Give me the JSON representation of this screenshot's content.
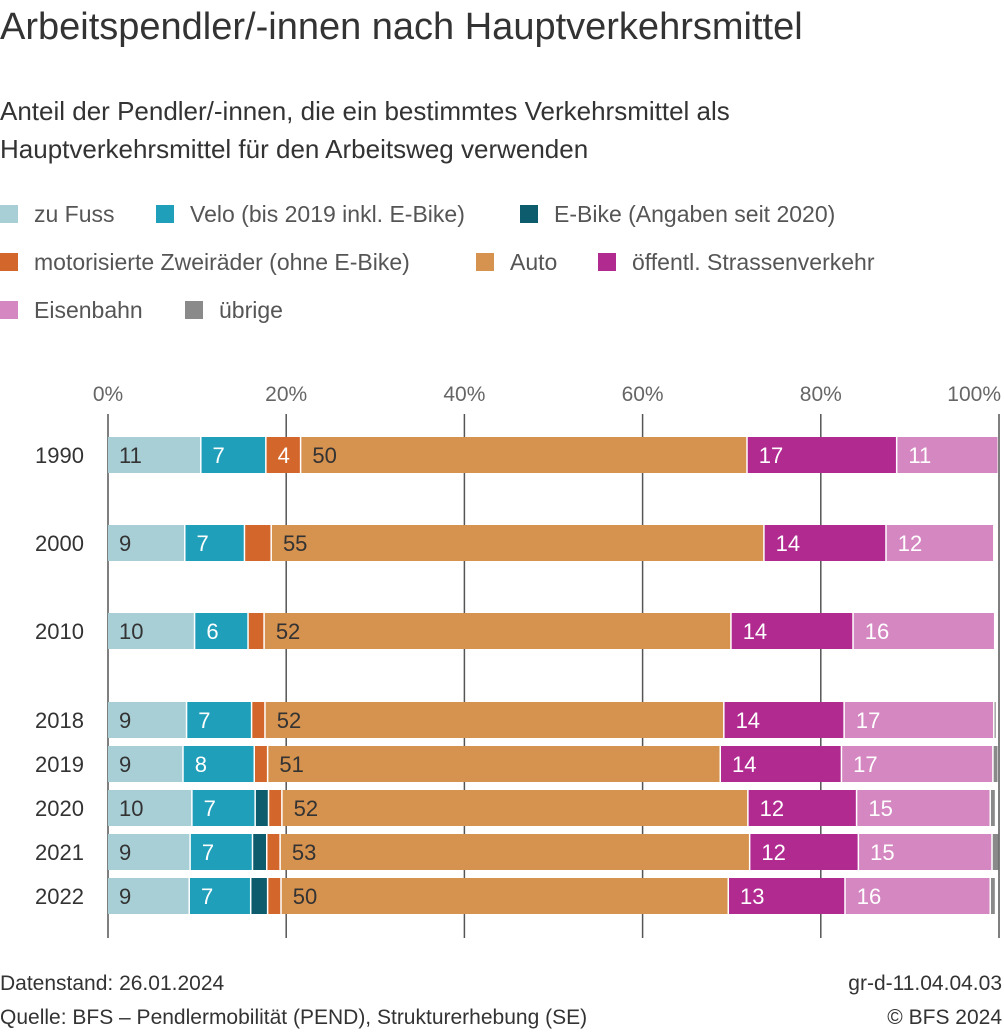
{
  "chart_data": {
    "type": "bar",
    "orientation": "horizontal",
    "stacked": true,
    "title": "Arbeitspendler/-innen nach Hauptverkehrsmittel",
    "subtitle": "Anteil der Pendler/-innen, die ein bestimmtes Verkehrsmittel als Hauptverkehrsmittel für den Arbeitsweg verwenden",
    "categories": [
      "1990",
      "2000",
      "2010",
      "2018",
      "2019",
      "2020",
      "2021",
      "2022"
    ],
    "x_ticks": [
      "0%",
      "20%",
      "40%",
      "60%",
      "80%",
      "100%"
    ],
    "xlim": [
      0,
      100
    ],
    "series": [
      {
        "name": "zu Fuss",
        "color": "#a8cfd6",
        "values": [
          10.5,
          8.7,
          9.8,
          8.9,
          8.5,
          9.5,
          9.3,
          9.2
        ],
        "labels": [
          "11",
          "9",
          "10",
          "9",
          "9",
          "10",
          "9",
          "9"
        ]
      },
      {
        "name": "Velo (bis 2019 inkl. E-Bike)",
        "color": "#1f9fba",
        "values": [
          7.3,
          6.7,
          6.0,
          7.3,
          8.0,
          7.1,
          7.0,
          6.9
        ],
        "labels": [
          "7",
          "7",
          "6",
          "7",
          "8",
          "7",
          "7",
          "7"
        ]
      },
      {
        "name": "E-Bike (Angaben seit 2020)",
        "color": "#0d5c6d",
        "values": [
          0,
          0,
          0,
          0,
          0,
          1.5,
          1.6,
          1.9
        ],
        "labels": [
          "",
          "",
          "",
          "",
          "",
          "",
          "",
          ""
        ]
      },
      {
        "name": "motorisierte Zweiräder (ohne E-Bike)",
        "color": "#d3662a",
        "values": [
          3.9,
          3.0,
          1.8,
          1.5,
          1.5,
          1.5,
          1.5,
          1.5
        ],
        "labels": [
          "4",
          "",
          "",
          "",
          "",
          "",
          "",
          ""
        ]
      },
      {
        "name": "Auto",
        "color": "#d6924f",
        "values": [
          50.1,
          55.3,
          52.4,
          51.5,
          50.8,
          52.3,
          52.7,
          50.2
        ],
        "labels": [
          "50",
          "55",
          "52",
          "52",
          "51",
          "52",
          "53",
          "50"
        ]
      },
      {
        "name": "öffentl. Strassenverkehr",
        "color": "#b02a90",
        "values": [
          16.8,
          13.7,
          13.7,
          13.5,
          13.6,
          12.2,
          12.2,
          13.1
        ],
        "labels": [
          "17",
          "14",
          "14",
          "14",
          "14",
          "12",
          "12",
          "13"
        ]
      },
      {
        "name": "Eisenbahn",
        "color": "#d487c1",
        "values": [
          11.4,
          12.1,
          15.9,
          16.8,
          17.0,
          15.0,
          15.0,
          16.3
        ],
        "labels": [
          "11",
          "12",
          "16",
          "17",
          "17",
          "15",
          "15",
          "16"
        ]
      },
      {
        "name": "übrige",
        "color": "#8a8a8a",
        "values": [
          0,
          0,
          0,
          0.3,
          0.6,
          0.6,
          0.8,
          0.6
        ],
        "labels": [
          "",
          "",
          "",
          "",
          "",
          "",
          "",
          ""
        ]
      }
    ]
  },
  "footer": {
    "datenstand": "Datenstand: 26.01.2024",
    "quelle": "Quelle: BFS – Pendlermobilität (PEND), Strukturerhebung (SE)",
    "code": "gr-d-11.04.04.03",
    "copyright": "© BFS 2024"
  }
}
